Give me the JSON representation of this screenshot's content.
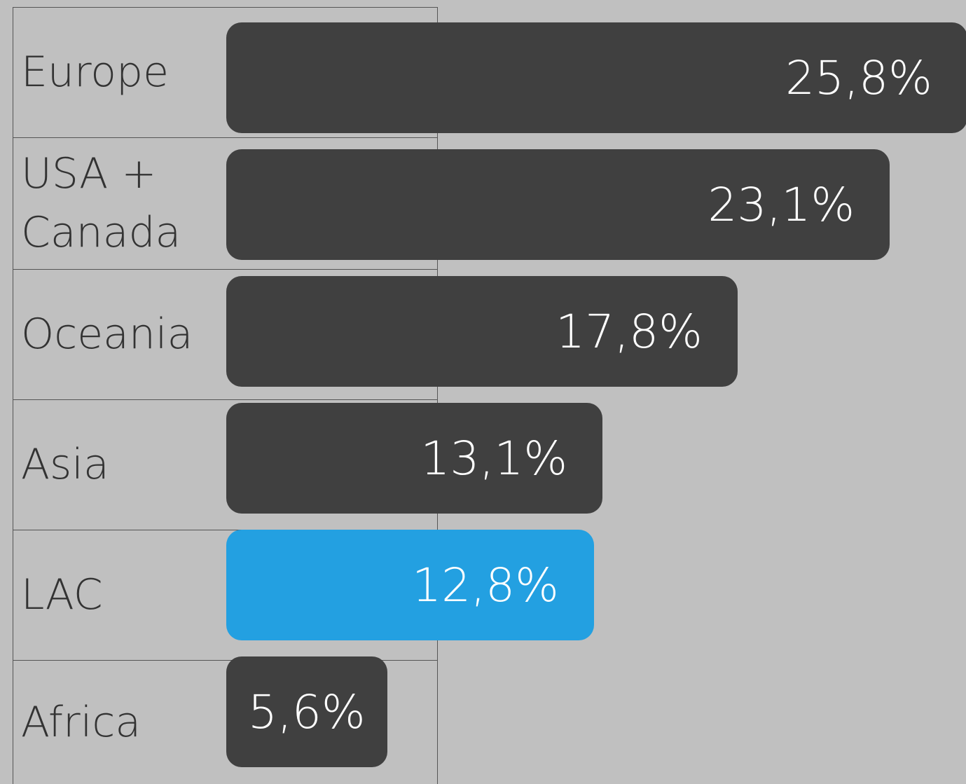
{
  "chart_data": {
    "type": "bar",
    "orientation": "horizontal",
    "categories": [
      "Europe",
      "USA + Canada",
      "Oceania",
      "Asia",
      "LAC",
      "Africa"
    ],
    "values": [
      25.8,
      23.1,
      17.8,
      13.1,
      12.8,
      5.6
    ],
    "value_labels": [
      "25,8%",
      "23,1%",
      "17,8%",
      "13,1%",
      "12,8%",
      "5,6%"
    ],
    "colors": [
      "#404040",
      "#404040",
      "#404040",
      "#404040",
      "#23a0e1",
      "#404040"
    ]
  }
}
